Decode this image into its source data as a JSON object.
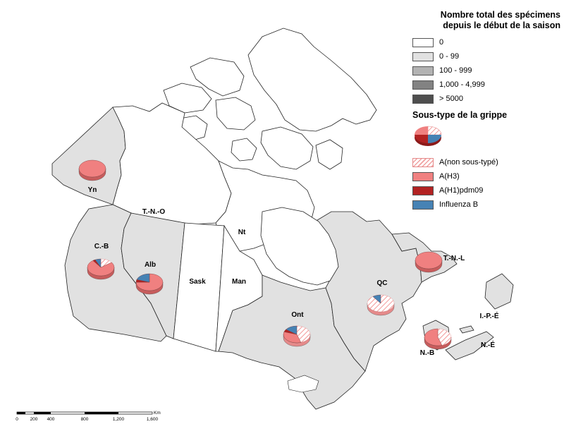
{
  "legend": {
    "total_title_line1": "Nombre total des spécimens",
    "total_title_line2": "depuis le début de la saison",
    "total_classes": [
      {
        "label": "0",
        "color": "#ffffff"
      },
      {
        "label": "0 - 99",
        "color": "#e1e1e1"
      },
      {
        "label": "100 - 999",
        "color": "#b2b2b2"
      },
      {
        "label": "1,000 - 4,999",
        "color": "#828282"
      },
      {
        "label": "> 5000",
        "color": "#4e4e4e"
      }
    ],
    "subtype_title": "Sous-type de la grippe",
    "subtypes": [
      {
        "label": "A(non sous-typé)",
        "color": "#f6b3b3",
        "hatched": true
      },
      {
        "label": "A(H3)",
        "color": "#f08080"
      },
      {
        "label": "A(H1)pdm09",
        "color": "#b22222"
      },
      {
        "label": "Influenza B",
        "color": "#4682b4"
      }
    ]
  },
  "regions": {
    "yn": "Yn",
    "tno": "T.-N.-O",
    "nt": "Nt",
    "cb": "C.-B",
    "alb": "Alb",
    "sask": "Sask",
    "man": "Man",
    "ont": "Ont",
    "qc": "QC",
    "tnl": "T.-N.-L",
    "ipe": "I.-P.-É",
    "ne": "N.-É",
    "nb": "N.-B"
  },
  "pies": {
    "yn": [
      0,
      1,
      0,
      0
    ],
    "cb": [
      0.15,
      0.75,
      0.03,
      0.07
    ],
    "alb": [
      0,
      0.75,
      0.05,
      0.2
    ],
    "ont": [
      0.45,
      0.35,
      0.05,
      0.15
    ],
    "qc": [
      0.9,
      0,
      0,
      0.1
    ],
    "tnl": [
      0,
      1,
      0,
      0
    ],
    "nb": [
      0.45,
      0.55,
      0,
      0
    ]
  },
  "scale": {
    "unit": "Km",
    "ticks": [
      "0",
      "200",
      "400",
      "800",
      "1,200",
      "1,600"
    ]
  }
}
